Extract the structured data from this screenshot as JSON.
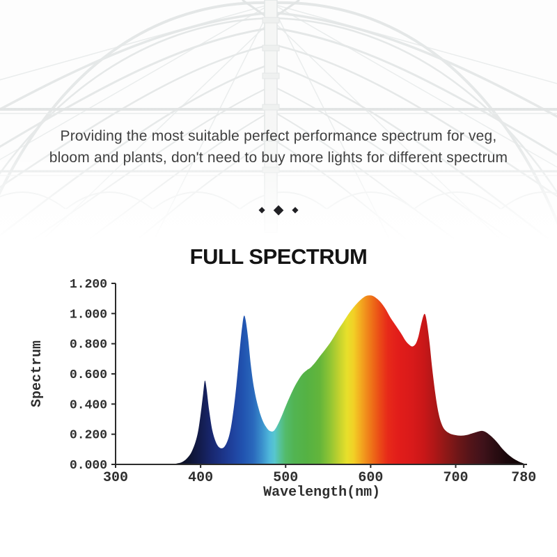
{
  "tagline": {
    "line1": "Providing the most suitable perfect performance spectrum for veg,",
    "line2": "bloom and plants, don't need to buy more lights for different spectrum"
  },
  "divider": {
    "glyph": "◆"
  },
  "colors": {
    "axis": "#2b2b2b",
    "tick_text": "#2e2e2e",
    "title": "#141414",
    "tagline_text": "#3f3f3f",
    "diamond": "#202024",
    "background": "#ffffff",
    "structure_line": "#e4e7e7"
  },
  "chart_data": {
    "type": "area",
    "title": "FULL SPECTRUM",
    "xlabel": "Wavelength(nm)",
    "ylabel": "Spectrum",
    "xlim": [
      300,
      780
    ],
    "ylim": [
      0,
      1.2
    ],
    "grid": false,
    "legend": "none",
    "x_ticks": [
      {
        "v": 300,
        "label": "300"
      },
      {
        "v": 400,
        "label": "400"
      },
      {
        "v": 500,
        "label": "500"
      },
      {
        "v": 600,
        "label": "600"
      },
      {
        "v": 700,
        "label": "700"
      },
      {
        "v": 780,
        "label": "780"
      }
    ],
    "y_ticks": [
      {
        "v": 0.0,
        "label": "0.000"
      },
      {
        "v": 0.2,
        "label": "0.200"
      },
      {
        "v": 0.4,
        "label": "0.400"
      },
      {
        "v": 0.6,
        "label": "0.600"
      },
      {
        "v": 0.8,
        "label": "0.800"
      },
      {
        "v": 1.0,
        "label": "1.000"
      },
      {
        "v": 1.2,
        "label": "1.200"
      }
    ],
    "points": [
      [
        366,
        0.002
      ],
      [
        372,
        0.006
      ],
      [
        378,
        0.015
      ],
      [
        384,
        0.04
      ],
      [
        390,
        0.09
      ],
      [
        396,
        0.19
      ],
      [
        400,
        0.33
      ],
      [
        403,
        0.47
      ],
      [
        405,
        0.555
      ],
      [
        407,
        0.5
      ],
      [
        410,
        0.36
      ],
      [
        414,
        0.22
      ],
      [
        419,
        0.135
      ],
      [
        424,
        0.107
      ],
      [
        429,
        0.125
      ],
      [
        434,
        0.2
      ],
      [
        438,
        0.33
      ],
      [
        442,
        0.52
      ],
      [
        446,
        0.76
      ],
      [
        449,
        0.92
      ],
      [
        451,
        0.985
      ],
      [
        453,
        0.955
      ],
      [
        456,
        0.83
      ],
      [
        459,
        0.66
      ],
      [
        463,
        0.5
      ],
      [
        468,
        0.375
      ],
      [
        473,
        0.29
      ],
      [
        478,
        0.24
      ],
      [
        482,
        0.22
      ],
      [
        486,
        0.222
      ],
      [
        490,
        0.255
      ],
      [
        495,
        0.315
      ],
      [
        500,
        0.385
      ],
      [
        505,
        0.45
      ],
      [
        510,
        0.51
      ],
      [
        515,
        0.56
      ],
      [
        520,
        0.6
      ],
      [
        525,
        0.625
      ],
      [
        529,
        0.64
      ],
      [
        534,
        0.67
      ],
      [
        540,
        0.715
      ],
      [
        547,
        0.765
      ],
      [
        554,
        0.82
      ],
      [
        561,
        0.885
      ],
      [
        568,
        0.945
      ],
      [
        575,
        1.005
      ],
      [
        582,
        1.055
      ],
      [
        589,
        1.095
      ],
      [
        594,
        1.115
      ],
      [
        598,
        1.12
      ],
      [
        602,
        1.118
      ],
      [
        606,
        1.105
      ],
      [
        611,
        1.08
      ],
      [
        617,
        1.035
      ],
      [
        623,
        0.975
      ],
      [
        629,
        0.925
      ],
      [
        635,
        0.875
      ],
      [
        641,
        0.82
      ],
      [
        645,
        0.795
      ],
      [
        649,
        0.782
      ],
      [
        653,
        0.8
      ],
      [
        656,
        0.845
      ],
      [
        659,
        0.92
      ],
      [
        662,
        0.985
      ],
      [
        664,
        0.995
      ],
      [
        666,
        0.945
      ],
      [
        669,
        0.82
      ],
      [
        672,
        0.655
      ],
      [
        676,
        0.47
      ],
      [
        680,
        0.335
      ],
      [
        684,
        0.26
      ],
      [
        688,
        0.225
      ],
      [
        693,
        0.205
      ],
      [
        699,
        0.195
      ],
      [
        706,
        0.19
      ],
      [
        713,
        0.195
      ],
      [
        719,
        0.205
      ],
      [
        725,
        0.215
      ],
      [
        730,
        0.222
      ],
      [
        734,
        0.218
      ],
      [
        739,
        0.2
      ],
      [
        744,
        0.175
      ],
      [
        749,
        0.145
      ],
      [
        754,
        0.11
      ],
      [
        759,
        0.08
      ],
      [
        764,
        0.055
      ],
      [
        769,
        0.035
      ],
      [
        774,
        0.02
      ],
      [
        778,
        0.01
      ],
      [
        780,
        0.006
      ]
    ],
    "spectrum_gradient": [
      {
        "nm": 366,
        "color": "#0a0c18"
      },
      {
        "nm": 386,
        "color": "#0e1430"
      },
      {
        "nm": 400,
        "color": "#131c4e"
      },
      {
        "nm": 413,
        "color": "#18276f"
      },
      {
        "nm": 426,
        "color": "#1c3488"
      },
      {
        "nm": 438,
        "color": "#1f429e"
      },
      {
        "nm": 450,
        "color": "#2153b0"
      },
      {
        "nm": 462,
        "color": "#2a69bc"
      },
      {
        "nm": 472,
        "color": "#3a8fcc"
      },
      {
        "nm": 481,
        "color": "#4fb7da"
      },
      {
        "nm": 487,
        "color": "#57c6cf"
      },
      {
        "nm": 493,
        "color": "#56c29b"
      },
      {
        "nm": 500,
        "color": "#53bb6a"
      },
      {
        "nm": 510,
        "color": "#52b452"
      },
      {
        "nm": 525,
        "color": "#55b243"
      },
      {
        "nm": 540,
        "color": "#63b53b"
      },
      {
        "nm": 552,
        "color": "#8fc434"
      },
      {
        "nm": 563,
        "color": "#c3d22e"
      },
      {
        "nm": 572,
        "color": "#e7e02b"
      },
      {
        "nm": 580,
        "color": "#f2d026"
      },
      {
        "nm": 588,
        "color": "#f3ab20"
      },
      {
        "nm": 596,
        "color": "#f0871b"
      },
      {
        "nm": 604,
        "color": "#ed6617"
      },
      {
        "nm": 612,
        "color": "#ea4517"
      },
      {
        "nm": 620,
        "color": "#e72a19"
      },
      {
        "nm": 632,
        "color": "#e21d1a"
      },
      {
        "nm": 648,
        "color": "#d91a1a"
      },
      {
        "nm": 662,
        "color": "#ca1718"
      },
      {
        "nm": 676,
        "color": "#ad1717"
      },
      {
        "nm": 690,
        "color": "#8b1817"
      },
      {
        "nm": 704,
        "color": "#6b1618"
      },
      {
        "nm": 718,
        "color": "#521419"
      },
      {
        "nm": 732,
        "color": "#3f121a"
      },
      {
        "nm": 746,
        "color": "#2b0d12"
      },
      {
        "nm": 760,
        "color": "#1b080c"
      },
      {
        "nm": 772,
        "color": "#120507"
      },
      {
        "nm": 780,
        "color": "#0c0305"
      }
    ]
  }
}
